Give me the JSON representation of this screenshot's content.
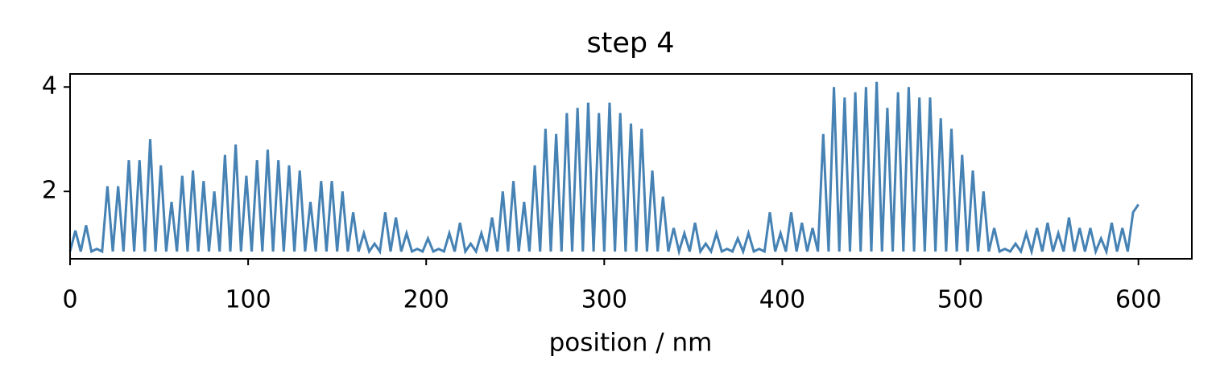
{
  "chart_data": {
    "type": "line",
    "title": "step 4",
    "x_label": "position / nm",
    "x": [
      0,
      3,
      6,
      9,
      12,
      15,
      18,
      21,
      24,
      27,
      30,
      33,
      36,
      39,
      42,
      45,
      48,
      51,
      54,
      57,
      60,
      63,
      66,
      69,
      72,
      75,
      78,
      81,
      84,
      87,
      90,
      93,
      96,
      99,
      102,
      105,
      108,
      111,
      114,
      117,
      120,
      123,
      126,
      129,
      132,
      135,
      138,
      141,
      144,
      147,
      150,
      153,
      156,
      159,
      162,
      165,
      168,
      171,
      174,
      177,
      180,
      183,
      186,
      189,
      192,
      195,
      198,
      201,
      204,
      207,
      210,
      213,
      216,
      219,
      222,
      225,
      228,
      231,
      234,
      237,
      240,
      243,
      246,
      249,
      252,
      255,
      258,
      261,
      264,
      267,
      270,
      273,
      276,
      279,
      282,
      285,
      288,
      291,
      294,
      297,
      300,
      303,
      306,
      309,
      312,
      315,
      318,
      321,
      324,
      327,
      330,
      333,
      336,
      339,
      342,
      345,
      348,
      351,
      354,
      357,
      360,
      363,
      366,
      369,
      372,
      375,
      378,
      381,
      384,
      387,
      390,
      393,
      396,
      399,
      402,
      405,
      408,
      411,
      414,
      417,
      420,
      423,
      426,
      429,
      432,
      435,
      438,
      441,
      444,
      447,
      450,
      453,
      456,
      459,
      462,
      465,
      468,
      471,
      474,
      477,
      480,
      483,
      486,
      489,
      492,
      495,
      498,
      501,
      504,
      507,
      510,
      513,
      516,
      519,
      522,
      525,
      528,
      531,
      534,
      537,
      540,
      543,
      546,
      549,
      552,
      555,
      558,
      561,
      564,
      567,
      570,
      573,
      576,
      579,
      582,
      585,
      588,
      591,
      594,
      597,
      600
    ],
    "series": [
      {
        "color": "#4682b4",
        "values": [
          0.85,
          1.25,
          0.85,
          1.35,
          0.85,
          0.9,
          0.85,
          2.1,
          0.85,
          2.1,
          0.85,
          2.6,
          0.85,
          2.6,
          0.85,
          3.0,
          0.85,
          2.5,
          0.85,
          1.8,
          0.85,
          2.3,
          0.85,
          2.4,
          0.85,
          2.2,
          0.85,
          2.0,
          0.85,
          2.7,
          0.85,
          2.9,
          0.85,
          2.3,
          0.85,
          2.6,
          0.85,
          2.8,
          0.85,
          2.6,
          0.85,
          2.5,
          0.85,
          2.4,
          0.85,
          1.8,
          0.85,
          2.2,
          0.85,
          2.2,
          0.85,
          2.0,
          0.85,
          1.6,
          0.85,
          1.2,
          0.85,
          1.0,
          0.85,
          1.6,
          0.85,
          1.5,
          0.85,
          1.2,
          0.85,
          0.9,
          0.85,
          1.1,
          0.85,
          0.9,
          0.85,
          1.2,
          0.85,
          1.4,
          0.85,
          1.0,
          0.85,
          1.2,
          0.85,
          1.5,
          0.85,
          2.0,
          0.85,
          2.2,
          0.85,
          1.8,
          0.85,
          2.5,
          0.85,
          3.2,
          0.85,
          3.1,
          0.85,
          3.5,
          0.85,
          3.6,
          0.85,
          3.7,
          0.85,
          3.5,
          0.85,
          3.7,
          0.85,
          3.5,
          0.85,
          3.3,
          0.85,
          3.2,
          0.85,
          2.4,
          0.85,
          1.9,
          0.85,
          1.3,
          0.85,
          1.2,
          0.85,
          1.4,
          0.85,
          1.0,
          0.85,
          1.2,
          0.85,
          0.9,
          0.85,
          1.1,
          0.85,
          1.2,
          0.85,
          0.9,
          0.85,
          1.6,
          0.85,
          1.2,
          0.85,
          1.6,
          0.85,
          1.4,
          0.85,
          1.3,
          0.85,
          3.1,
          0.85,
          4.0,
          0.85,
          3.8,
          0.85,
          3.9,
          0.85,
          4.0,
          0.85,
          4.1,
          0.85,
          3.6,
          0.85,
          3.9,
          0.85,
          4.0,
          0.85,
          3.8,
          0.85,
          3.8,
          0.85,
          3.4,
          0.85,
          3.2,
          0.85,
          2.7,
          0.85,
          2.4,
          0.85,
          2.0,
          0.85,
          1.3,
          0.85,
          0.9,
          0.85,
          1.0,
          0.85,
          1.2,
          0.85,
          1.3,
          0.85,
          1.4,
          0.85,
          1.2,
          0.85,
          1.5,
          0.85,
          1.3,
          0.85,
          1.3,
          0.85,
          1.1,
          0.85,
          1.4,
          0.85,
          1.3,
          0.85,
          1.6,
          1.75
        ]
      }
    ],
    "xlim": [
      0,
      630
    ],
    "ylim": [
      0.71,
      4.25
    ],
    "xticks": [
      0,
      100,
      200,
      300,
      400,
      500,
      600
    ],
    "yticks": [
      2,
      4
    ]
  }
}
